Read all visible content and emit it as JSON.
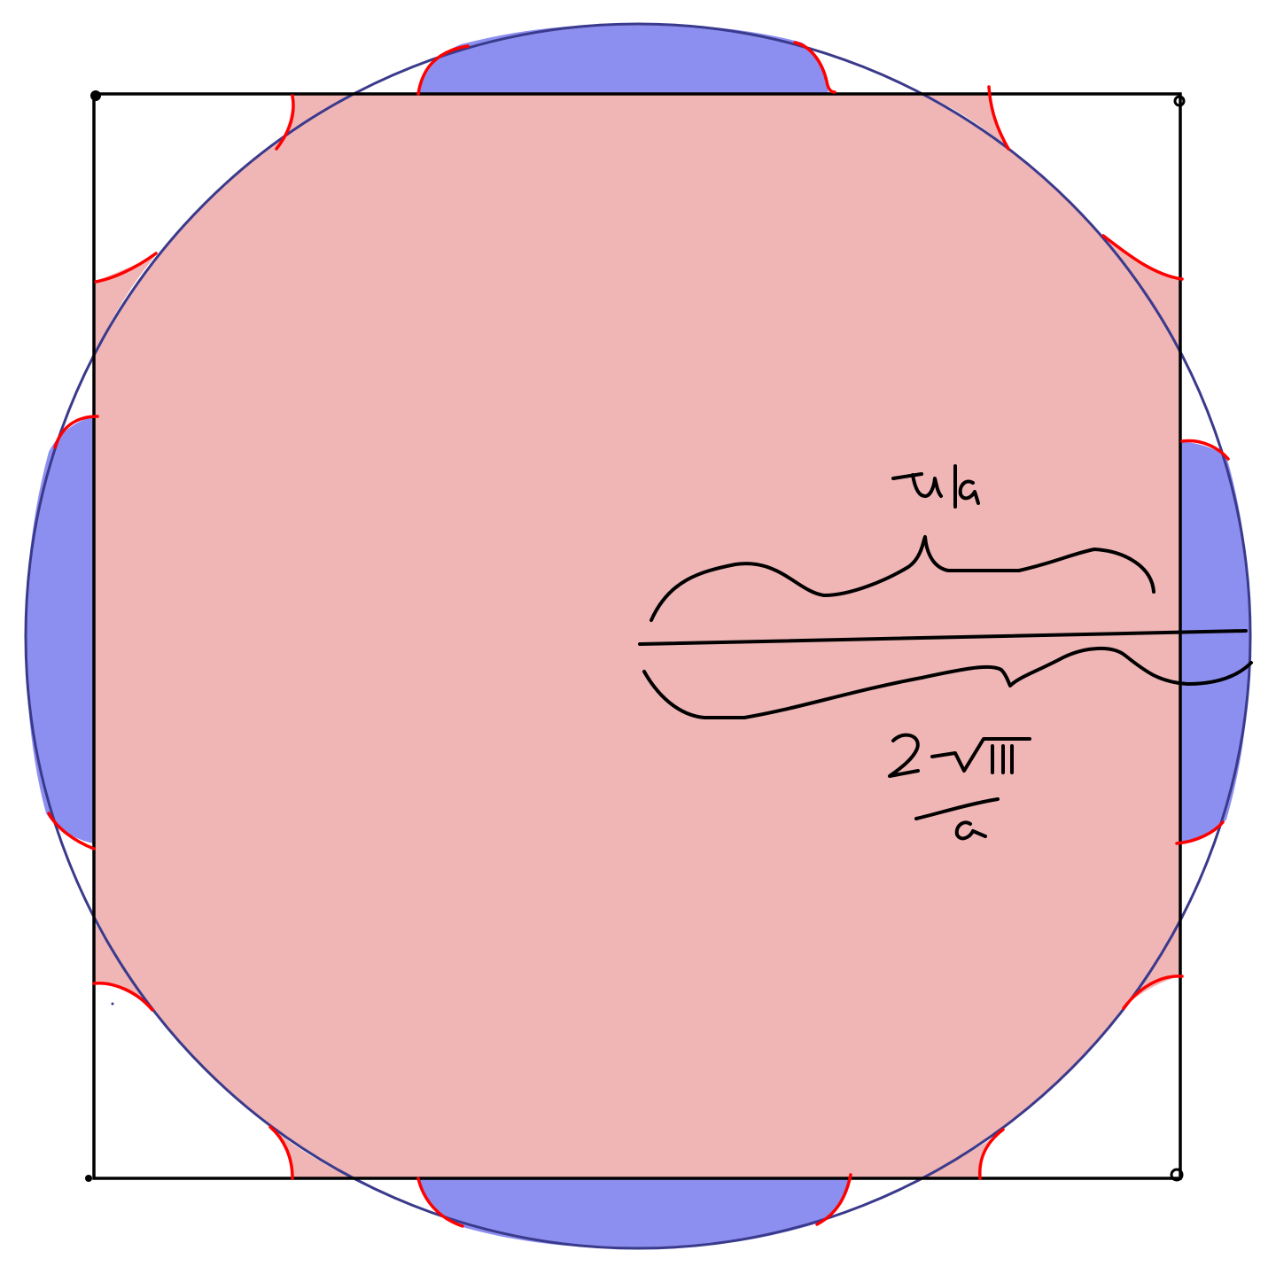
{
  "colors": {
    "background": "#ffffff",
    "square_fill": "#f0b5b5",
    "circle_cap_fill": "#8d8ff0",
    "circle_outline": "#3a3a8c",
    "ink": "#000000",
    "red_marks": "#ff0000"
  },
  "annotations": {
    "upper_brace_label": "π/a",
    "lower_brace_label_numerator": "2√π",
    "lower_brace_label_denominator": "a"
  }
}
